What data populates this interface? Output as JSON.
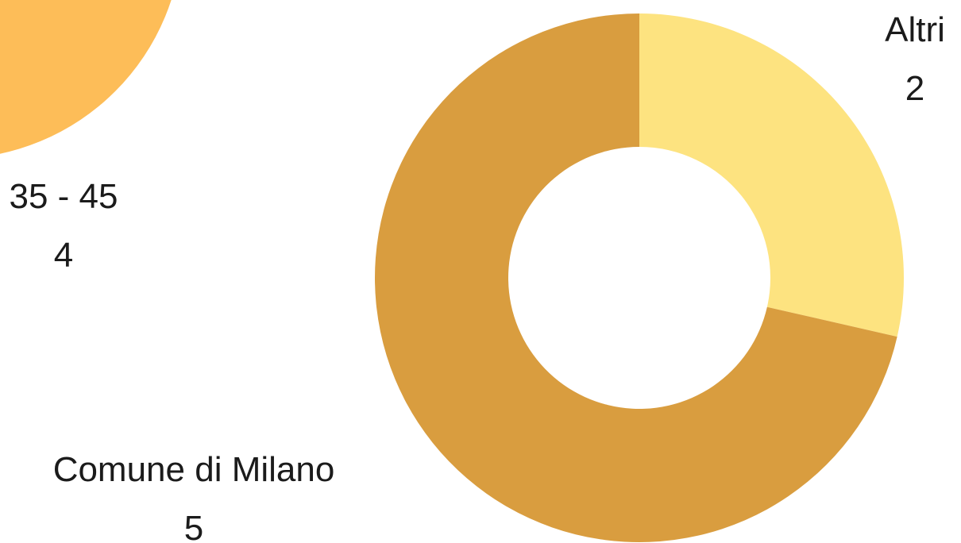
{
  "chart_data": [
    {
      "type": "pie",
      "title": "",
      "slices": [
        {
          "label": "35 - 45",
          "value": 4,
          "color": "#fdbd58"
        }
      ],
      "partially_visible": true
    },
    {
      "type": "pie",
      "variant": "donut",
      "title": "",
      "slices": [
        {
          "label": "Altri",
          "value": 2,
          "color": "#fde380"
        },
        {
          "label": "Comune di Milano",
          "value": 5,
          "color": "#d99d3f"
        }
      ]
    }
  ]
}
